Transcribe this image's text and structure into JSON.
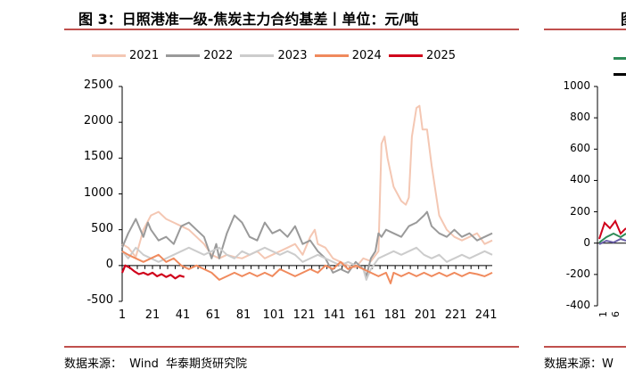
{
  "title": "图 3：日照港准一级-焦炭主力合约基差丨单位：元/吨",
  "source": {
    "label": "数据来源：",
    "org1": "Wind",
    "org2": "华泰期货研究院"
  },
  "colors": {
    "accent": "#c0504d",
    "s2021": "#f4c7b3",
    "s2022": "#9a9a9a",
    "s2023": "#cccccc",
    "s2024": "#f08a5d",
    "s2025": "#d0021b"
  },
  "chart_data": {
    "type": "line",
    "title": "日照港准一级-焦炭主力合约基差",
    "ylabel": "元/吨",
    "ylim": [
      -500,
      2500
    ],
    "yticks": [
      "2500",
      "2000",
      "1500",
      "1000",
      "500",
      "0",
      "-500"
    ],
    "xticks": [
      "1",
      "21",
      "41",
      "61",
      "81",
      "101",
      "121",
      "141",
      "161",
      "181",
      "201",
      "221",
      "241"
    ],
    "xlim": [
      1,
      245
    ],
    "series": [
      {
        "name": "2021",
        "color": "#f4c7b3",
        "points": [
          [
            1,
            300
          ],
          [
            5,
            250
          ],
          [
            10,
            120
          ],
          [
            15,
            500
          ],
          [
            20,
            700
          ],
          [
            25,
            750
          ],
          [
            30,
            650
          ],
          [
            35,
            600
          ],
          [
            40,
            550
          ],
          [
            45,
            500
          ],
          [
            50,
            400
          ],
          [
            55,
            300
          ],
          [
            60,
            150
          ],
          [
            65,
            100
          ],
          [
            70,
            150
          ],
          [
            75,
            120
          ],
          [
            80,
            100
          ],
          [
            85,
            150
          ],
          [
            90,
            200
          ],
          [
            95,
            100
          ],
          [
            100,
            150
          ],
          [
            105,
            200
          ],
          [
            110,
            250
          ],
          [
            115,
            300
          ],
          [
            120,
            150
          ],
          [
            125,
            400
          ],
          [
            128,
            500
          ],
          [
            130,
            300
          ],
          [
            135,
            250
          ],
          [
            140,
            100
          ],
          [
            145,
            50
          ],
          [
            150,
            0
          ],
          [
            155,
            -30
          ],
          [
            160,
            100
          ],
          [
            165,
            60
          ],
          [
            170,
            200
          ],
          [
            172,
            1700
          ],
          [
            174,
            1800
          ],
          [
            176,
            1500
          ],
          [
            180,
            1100
          ],
          [
            185,
            900
          ],
          [
            188,
            850
          ],
          [
            190,
            950
          ],
          [
            192,
            1800
          ],
          [
            195,
            2200
          ],
          [
            197,
            2230
          ],
          [
            199,
            1900
          ],
          [
            202,
            1900
          ],
          [
            205,
            1400
          ],
          [
            210,
            700
          ],
          [
            215,
            500
          ],
          [
            220,
            400
          ],
          [
            225,
            350
          ],
          [
            230,
            400
          ],
          [
            235,
            450
          ],
          [
            240,
            300
          ],
          [
            245,
            350
          ]
        ]
      },
      {
        "name": "2022",
        "color": "#9a9a9a",
        "points": [
          [
            1,
            250
          ],
          [
            5,
            450
          ],
          [
            10,
            650
          ],
          [
            13,
            500
          ],
          [
            15,
            400
          ],
          [
            18,
            600
          ],
          [
            20,
            500
          ],
          [
            25,
            350
          ],
          [
            30,
            400
          ],
          [
            35,
            300
          ],
          [
            40,
            550
          ],
          [
            45,
            600
          ],
          [
            50,
            500
          ],
          [
            55,
            400
          ],
          [
            60,
            100
          ],
          [
            63,
            300
          ],
          [
            65,
            100
          ],
          [
            70,
            450
          ],
          [
            75,
            700
          ],
          [
            80,
            600
          ],
          [
            85,
            400
          ],
          [
            90,
            350
          ],
          [
            95,
            600
          ],
          [
            100,
            450
          ],
          [
            105,
            500
          ],
          [
            110,
            400
          ],
          [
            115,
            550
          ],
          [
            120,
            300
          ],
          [
            125,
            350
          ],
          [
            130,
            200
          ],
          [
            135,
            100
          ],
          [
            140,
            -100
          ],
          [
            145,
            -50
          ],
          [
            150,
            -100
          ],
          [
            155,
            50
          ],
          [
            160,
            -50
          ],
          [
            162,
            -150
          ],
          [
            165,
            100
          ],
          [
            168,
            200
          ],
          [
            170,
            450
          ],
          [
            172,
            400
          ],
          [
            175,
            500
          ],
          [
            180,
            450
          ],
          [
            185,
            400
          ],
          [
            190,
            550
          ],
          [
            195,
            600
          ],
          [
            200,
            700
          ],
          [
            202,
            750
          ],
          [
            205,
            550
          ],
          [
            210,
            450
          ],
          [
            215,
            400
          ],
          [
            220,
            500
          ],
          [
            225,
            400
          ],
          [
            230,
            450
          ],
          [
            235,
            350
          ],
          [
            240,
            400
          ],
          [
            245,
            450
          ]
        ]
      },
      {
        "name": "2023",
        "color": "#cccccc",
        "points": [
          [
            1,
            200
          ],
          [
            5,
            100
          ],
          [
            10,
            250
          ],
          [
            15,
            150
          ],
          [
            20,
            100
          ],
          [
            25,
            50
          ],
          [
            30,
            100
          ],
          [
            35,
            150
          ],
          [
            40,
            200
          ],
          [
            45,
            250
          ],
          [
            50,
            200
          ],
          [
            55,
            150
          ],
          [
            60,
            200
          ],
          [
            65,
            250
          ],
          [
            70,
            150
          ],
          [
            75,
            100
          ],
          [
            80,
            200
          ],
          [
            85,
            150
          ],
          [
            90,
            200
          ],
          [
            95,
            250
          ],
          [
            100,
            200
          ],
          [
            105,
            150
          ],
          [
            110,
            200
          ],
          [
            115,
            150
          ],
          [
            120,
            50
          ],
          [
            125,
            100
          ],
          [
            130,
            150
          ],
          [
            135,
            100
          ],
          [
            140,
            50
          ],
          [
            145,
            0
          ],
          [
            150,
            50
          ],
          [
            155,
            0
          ],
          [
            160,
            -50
          ],
          [
            162,
            -200
          ],
          [
            165,
            -50
          ],
          [
            170,
            100
          ],
          [
            175,
            150
          ],
          [
            180,
            200
          ],
          [
            185,
            150
          ],
          [
            190,
            200
          ],
          [
            195,
            250
          ],
          [
            200,
            150
          ],
          [
            205,
            100
          ],
          [
            210,
            150
          ],
          [
            215,
            50
          ],
          [
            220,
            100
          ],
          [
            225,
            150
          ],
          [
            230,
            100
          ],
          [
            235,
            150
          ],
          [
            240,
            200
          ],
          [
            245,
            150
          ]
        ]
      },
      {
        "name": "2024",
        "color": "#f08a5d",
        "points": [
          [
            1,
            200
          ],
          [
            5,
            150
          ],
          [
            10,
            100
          ],
          [
            15,
            50
          ],
          [
            20,
            100
          ],
          [
            25,
            150
          ],
          [
            30,
            50
          ],
          [
            35,
            100
          ],
          [
            40,
            0
          ],
          [
            45,
            -50
          ],
          [
            50,
            0
          ],
          [
            55,
            -50
          ],
          [
            60,
            -100
          ],
          [
            65,
            -200
          ],
          [
            70,
            -150
          ],
          [
            75,
            -100
          ],
          [
            80,
            -150
          ],
          [
            85,
            -100
          ],
          [
            90,
            -150
          ],
          [
            95,
            -100
          ],
          [
            100,
            -150
          ],
          [
            105,
            -50
          ],
          [
            110,
            -100
          ],
          [
            115,
            -150
          ],
          [
            120,
            -100
          ],
          [
            125,
            -50
          ],
          [
            130,
            -100
          ],
          [
            135,
            0
          ],
          [
            140,
            -50
          ],
          [
            145,
            50
          ],
          [
            150,
            -50
          ],
          [
            155,
            0
          ],
          [
            160,
            -50
          ],
          [
            165,
            -100
          ],
          [
            170,
            -150
          ],
          [
            175,
            -100
          ],
          [
            178,
            -250
          ],
          [
            180,
            -100
          ],
          [
            185,
            -150
          ],
          [
            190,
            -100
          ],
          [
            195,
            -150
          ],
          [
            200,
            -100
          ],
          [
            205,
            -150
          ],
          [
            210,
            -100
          ],
          [
            215,
            -150
          ],
          [
            220,
            -100
          ],
          [
            225,
            -150
          ],
          [
            230,
            -100
          ],
          [
            235,
            -120
          ],
          [
            240,
            -150
          ],
          [
            245,
            -100
          ]
        ]
      },
      {
        "name": "2025",
        "color": "#d0021b",
        "points": [
          [
            1,
            -100
          ],
          [
            3,
            0
          ],
          [
            6,
            -30
          ],
          [
            9,
            -80
          ],
          [
            12,
            -120
          ],
          [
            15,
            -100
          ],
          [
            18,
            -130
          ],
          [
            21,
            -100
          ],
          [
            24,
            -150
          ],
          [
            27,
            -120
          ],
          [
            30,
            -160
          ],
          [
            33,
            -130
          ],
          [
            36,
            -180
          ],
          [
            39,
            -140
          ],
          [
            42,
            -160
          ]
        ]
      }
    ]
  },
  "side_panel": {
    "yticks": [
      "1000",
      "800",
      "600",
      "400",
      "200",
      "0",
      "-200",
      "-400"
    ],
    "source": "数据来源：W"
  }
}
